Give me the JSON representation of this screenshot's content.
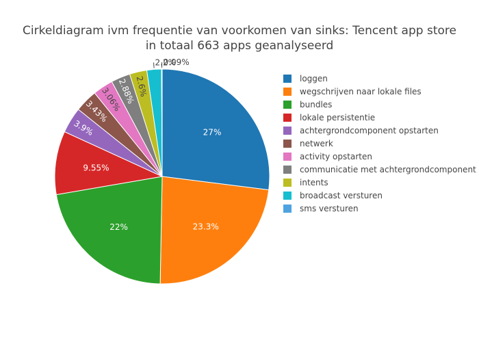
{
  "chart_data": {
    "type": "pie",
    "title_line1": "Cirkeldiagram ivm frequentie van voorkomen van sinks: Tencent app store",
    "title_line2": "in totaal 663 apps geanalyseerd",
    "slices": [
      {
        "label": "loggen",
        "value": 27.0,
        "text": "27%",
        "color": "#1f77b4"
      },
      {
        "label": "wegschrijven naar lokale files",
        "value": 23.3,
        "text": "23.3%",
        "color": "#ff7f0e"
      },
      {
        "label": "bundles",
        "value": 22.0,
        "text": "22%",
        "color": "#2ca02c"
      },
      {
        "label": "lokale persistentie",
        "value": 9.55,
        "text": "9.55%",
        "color": "#d62728"
      },
      {
        "label": "achtergrondcomponent opstarten",
        "value": 3.9,
        "text": "3.9%",
        "color": "#9467bd"
      },
      {
        "label": "netwerk",
        "value": 3.43,
        "text": "3.43%",
        "color": "#8c564b"
      },
      {
        "label": "activity opstarten",
        "value": 3.06,
        "text": "3.06%",
        "color": "#e377c2"
      },
      {
        "label": "communicatie met achtergrondcomponent",
        "value": 2.88,
        "text": "2.88%",
        "color": "#7f7f7f"
      },
      {
        "label": "intents",
        "value": 2.6,
        "text": "2.6%",
        "color": "#bcbd22"
      },
      {
        "label": "broadcast versturen",
        "value": 2.2,
        "text": "2.2%",
        "color": "#17becf"
      },
      {
        "label": "sms versturen",
        "value": 0.09,
        "text": "0.09%",
        "color": "#4fa3e0"
      }
    ]
  }
}
